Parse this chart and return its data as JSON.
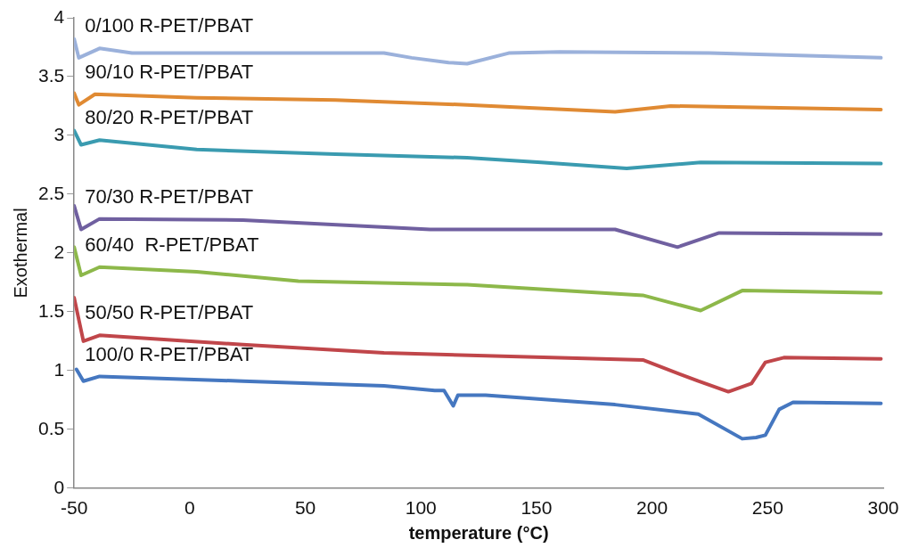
{
  "chart_data": {
    "type": "line",
    "xlabel": "temperature (°C)",
    "ylabel": "Exothermal",
    "xlim": [
      -50,
      300
    ],
    "xticks": [
      -50,
      0,
      50,
      100,
      150,
      200,
      250,
      300
    ],
    "ylim": [
      0,
      4
    ],
    "yticks": [
      0,
      0.5,
      1,
      1.5,
      2,
      2.5,
      3,
      3.5,
      4
    ],
    "grid": false,
    "legend": false,
    "marker": "none",
    "line_style": "solid",
    "series": [
      {
        "name": "0/100 R-PET/PBAT",
        "color": "#9bb1db",
        "x": [
          -50,
          -48,
          -39,
          -25,
          23,
          84,
          96,
          112,
          120,
          138,
          160,
          225,
          299
        ],
        "values": [
          3.82,
          3.66,
          3.74,
          3.7,
          3.7,
          3.7,
          3.66,
          3.62,
          3.61,
          3.7,
          3.71,
          3.7,
          3.66
        ]
      },
      {
        "name": "90/10 R-PET/PBAT",
        "color": "#e08a33",
        "x": [
          -50,
          -48,
          -41,
          3,
          63,
          120,
          184,
          208,
          299
        ],
        "values": [
          3.36,
          3.26,
          3.35,
          3.32,
          3.3,
          3.26,
          3.2,
          3.25,
          3.22
        ]
      },
      {
        "name": "80/20 R-PET/PBAT",
        "color": "#3a9bb0",
        "x": [
          -50,
          -47,
          -39,
          3,
          63,
          120,
          152,
          189,
          221,
          299
        ],
        "values": [
          3.04,
          2.92,
          2.96,
          2.88,
          2.84,
          2.81,
          2.77,
          2.72,
          2.77,
          2.76
        ]
      },
      {
        "name": "70/30 R-PET/PBAT",
        "color": "#7060a0",
        "x": [
          -50,
          -47,
          -39,
          23,
          104,
          184,
          211,
          229,
          299
        ],
        "values": [
          2.4,
          2.2,
          2.29,
          2.28,
          2.2,
          2.2,
          2.05,
          2.17,
          2.16
        ]
      },
      {
        "name": "60/40  R-PET/PBAT",
        "color": "#8db84a",
        "x": [
          -50,
          -47,
          -39,
          3,
          47,
          120,
          196,
          221,
          239,
          299
        ],
        "values": [
          2.05,
          1.81,
          1.88,
          1.84,
          1.76,
          1.73,
          1.64,
          1.51,
          1.68,
          1.66
        ]
      },
      {
        "name": "50/50 R-PET/PBAT",
        "color": "#c0464a",
        "x": [
          -50,
          -46,
          -39,
          23,
          84,
          196,
          220,
          233,
          243,
          249,
          257,
          299
        ],
        "values": [
          1.62,
          1.25,
          1.3,
          1.22,
          1.15,
          1.09,
          0.91,
          0.82,
          0.89,
          1.07,
          1.11,
          1.1
        ]
      },
      {
        "name": "100/0 R-PET/PBAT",
        "color": "#4577c0",
        "x": [
          -49,
          -46,
          -39,
          23,
          84,
          106,
          110,
          114,
          116,
          128,
          184,
          220,
          239,
          245,
          249,
          255,
          261,
          299
        ],
        "values": [
          1.01,
          0.91,
          0.95,
          0.91,
          0.87,
          0.83,
          0.83,
          0.7,
          0.79,
          0.79,
          0.71,
          0.63,
          0.42,
          0.43,
          0.45,
          0.67,
          0.73,
          0.72
        ]
      }
    ]
  }
}
